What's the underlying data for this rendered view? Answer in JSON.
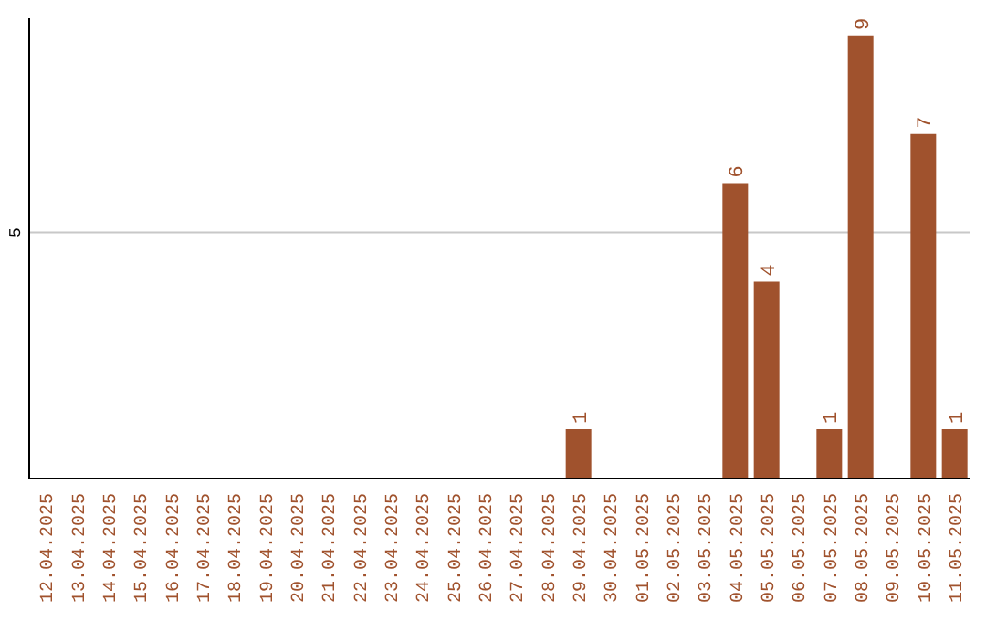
{
  "chart_data": {
    "type": "bar",
    "categories": [
      "12.04.2025",
      "13.04.2025",
      "14.04.2025",
      "15.04.2025",
      "16.04.2025",
      "17.04.2025",
      "18.04.2025",
      "19.04.2025",
      "20.04.2025",
      "21.04.2025",
      "22.04.2025",
      "23.04.2025",
      "24.04.2025",
      "25.04.2025",
      "26.04.2025",
      "27.04.2025",
      "28.04.2025",
      "29.04.2025",
      "30.04.2025",
      "01.05.2025",
      "02.05.2025",
      "03.05.2025",
      "04.05.2025",
      "05.05.2025",
      "06.05.2025",
      "07.05.2025",
      "08.05.2025",
      "09.05.2025",
      "10.05.2025",
      "11.05.2025"
    ],
    "values": [
      null,
      null,
      null,
      null,
      null,
      null,
      null,
      null,
      null,
      null,
      null,
      null,
      null,
      null,
      null,
      null,
      null,
      1,
      null,
      null,
      null,
      null,
      6,
      4,
      null,
      1,
      9,
      null,
      7,
      1
    ],
    "color": "#a0522d",
    "ylim": [
      0,
      9.35
    ],
    "yticks": [
      5
    ],
    "grid": "y",
    "data_labels": true
  }
}
